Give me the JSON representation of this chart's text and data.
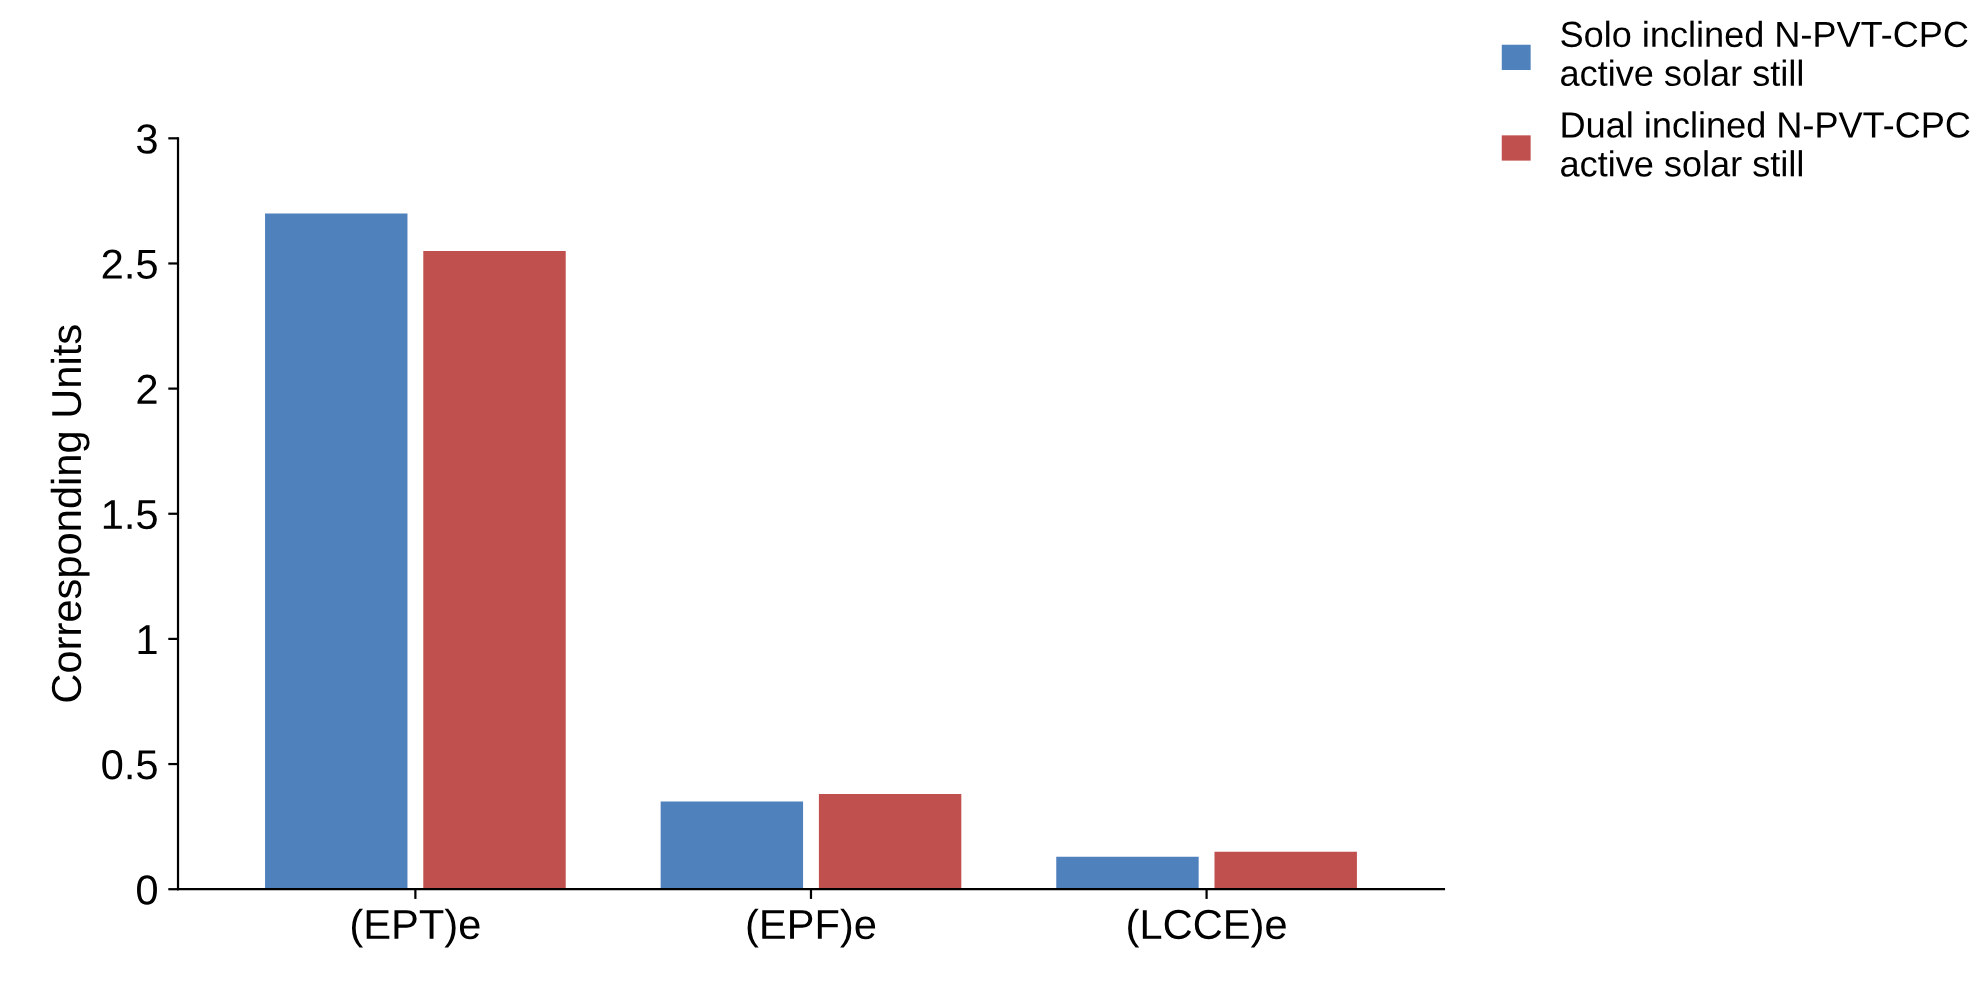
{
  "chart_data": {
    "type": "bar",
    "ylabel": "Corresponding Units",
    "categories": [
      "(EPT)e",
      "(EPF)e",
      "(LCCE)e"
    ],
    "series": [
      {
        "name": "Solo inclined N-PVT-CPC\nactive solar still",
        "color": "#4f81bd",
        "values": [
          2.7,
          0.35,
          0.13
        ]
      },
      {
        "name": "Dual inclined N-PVT-CPC\nactive solar still",
        "color": "#c0504d",
        "values": [
          2.55,
          0.38,
          0.15
        ]
      }
    ],
    "ylim": [
      0,
      3
    ],
    "yticks": [
      0,
      0.5,
      1,
      1.5,
      2,
      2.5,
      3
    ],
    "grid": false,
    "legend": "top right"
  }
}
